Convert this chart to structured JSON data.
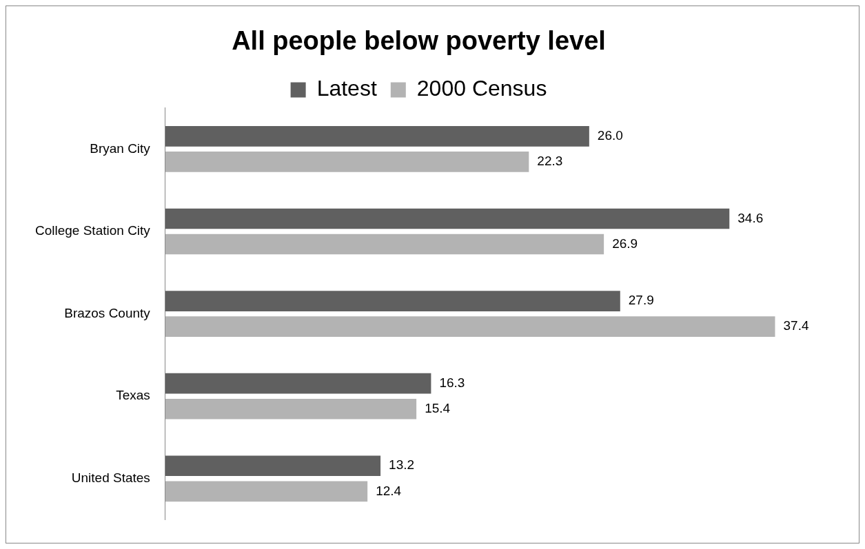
{
  "chart_data": {
    "type": "bar",
    "orientation": "horizontal",
    "title": "All people below poverty level",
    "categories": [
      "Bryan City",
      "College Station City",
      "Brazos County",
      "Texas",
      "United States"
    ],
    "series": [
      {
        "name": "Latest",
        "color": "#606060",
        "values": [
          26.0,
          34.6,
          27.9,
          16.3,
          13.2
        ],
        "value_labels": [
          "26.0",
          "34.6",
          "27.9",
          "16.3",
          "13.2"
        ]
      },
      {
        "name": "2000 Census",
        "color": "#b3b3b3",
        "values": [
          22.3,
          26.9,
          37.4,
          15.4,
          12.4
        ],
        "value_labels": [
          "22.3",
          "26.9",
          "37.4",
          "15.4",
          "12.4"
        ]
      }
    ],
    "tick_labels": "y",
    "legend": "top",
    "grid": false
  }
}
